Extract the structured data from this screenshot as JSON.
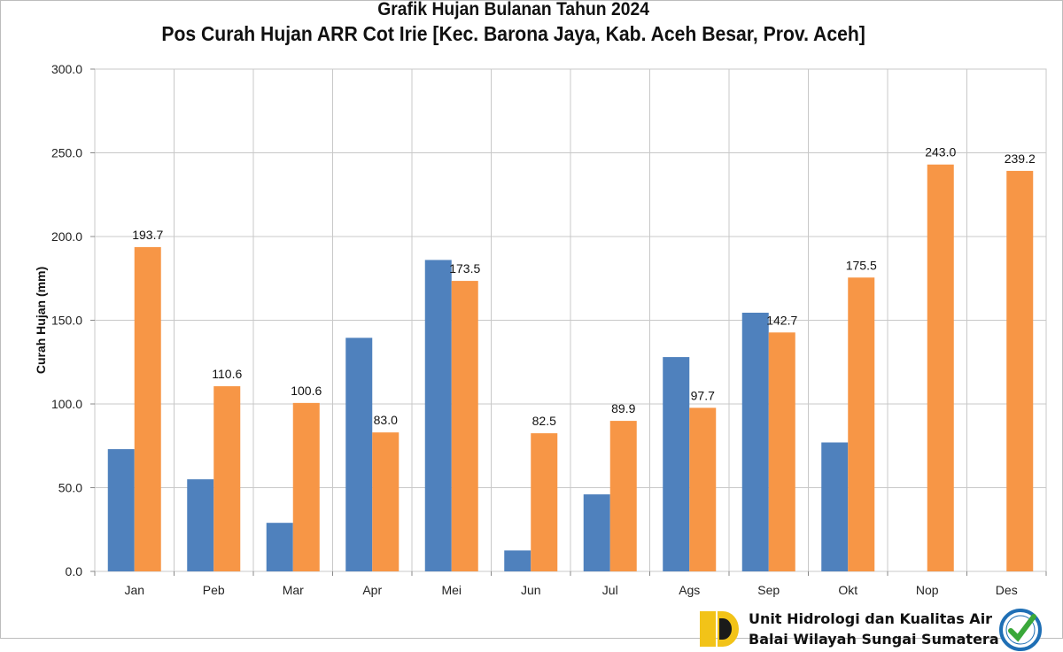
{
  "chart_data": {
    "type": "bar",
    "title": "Grafik Hujan Bulanan Tahun 2024",
    "subtitle": "Pos Curah Hujan ARR Cot Irie [Kec. Barona Jaya, Kab. Aceh Besar, Prov. Aceh]",
    "xlabel": "",
    "ylabel": "Curah Hujan (mm)",
    "ylim": [
      0,
      300
    ],
    "yticks": [
      "0.0",
      "50.0",
      "100.0",
      "150.0",
      "200.0",
      "250.0",
      "300.0"
    ],
    "grid": true,
    "categories": [
      "Jan",
      "Peb",
      "Mar",
      "Apr",
      "Mei",
      "Jun",
      "Jul",
      "Ags",
      "Sep",
      "Okt",
      "Nop",
      "Des"
    ],
    "series": [
      {
        "color": "#4F81BD",
        "values": [
          73,
          55,
          29,
          139.5,
          186,
          12.5,
          46,
          128,
          154.5,
          77,
          null,
          null
        ],
        "labels": null
      },
      {
        "color": "#F79646",
        "values": [
          193.7,
          110.6,
          100.6,
          83.0,
          173.5,
          82.5,
          89.9,
          97.7,
          142.7,
          175.5,
          243.0,
          239.2
        ],
        "labels": [
          "193.7",
          "110.6",
          "100.6",
          "83.0",
          "173.5",
          "82.5",
          "89.9",
          "97.7",
          "142.7",
          "175.5",
          "243.0",
          "239.2"
        ]
      }
    ]
  },
  "footer": {
    "line1": "Unit Hidrologi dan Kualitas Air",
    "line2": "Balai Wilayah Sungai Sumatera I"
  },
  "colors": {
    "grid": "#c8c8c8",
    "logo_yellow": "#F2C318",
    "logo_dark": "#1a1a1a",
    "badge_blue": "#1f6fb5",
    "badge_green": "#3aa83a"
  }
}
